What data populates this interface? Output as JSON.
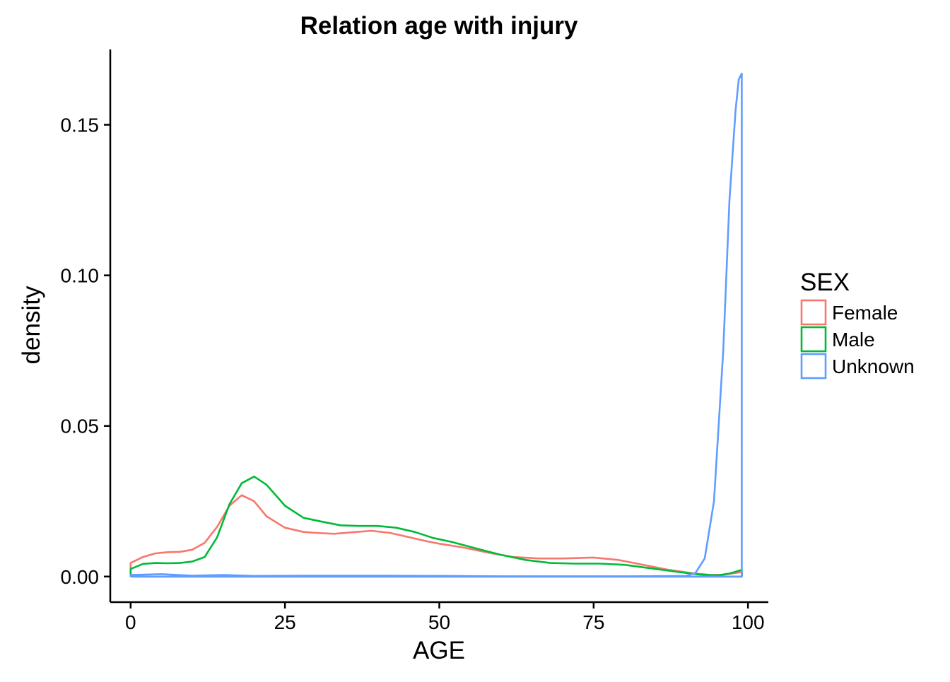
{
  "chart_data": {
    "type": "line",
    "title": "Relation age with injury",
    "xlabel": "AGE",
    "ylabel": "density",
    "xlim": [
      -3.3,
      103.3
    ],
    "ylim": [
      -0.0085,
      0.175
    ],
    "x_ticks": [
      0,
      25,
      50,
      75,
      100
    ],
    "x_tick_labels": [
      "0",
      "25",
      "50",
      "75",
      "100"
    ],
    "y_ticks": [
      0.0,
      0.05,
      0.1,
      0.15
    ],
    "y_tick_labels": [
      "0.00",
      "0.05",
      "0.10",
      "0.15"
    ],
    "grid": false,
    "legend": {
      "title": "SEX",
      "position": "right",
      "entries": [
        "Female",
        "Male",
        "Unknown"
      ]
    },
    "series": [
      {
        "name": "Female",
        "color": "#F8766D",
        "points": [
          [
            0,
            0.0045
          ],
          [
            2,
            0.0065
          ],
          [
            4,
            0.0077
          ],
          [
            6,
            0.0081
          ],
          [
            8,
            0.0082
          ],
          [
            10,
            0.0089
          ],
          [
            12,
            0.0112
          ],
          [
            14,
            0.0165
          ],
          [
            16,
            0.0235
          ],
          [
            18,
            0.027
          ],
          [
            20,
            0.025
          ],
          [
            22,
            0.02
          ],
          [
            25,
            0.0162
          ],
          [
            28,
            0.0148
          ],
          [
            30,
            0.0145
          ],
          [
            33,
            0.0142
          ],
          [
            36,
            0.0147
          ],
          [
            39,
            0.0152
          ],
          [
            42,
            0.0145
          ],
          [
            45,
            0.0131
          ],
          [
            48,
            0.0117
          ],
          [
            50,
            0.0109
          ],
          [
            54,
            0.0096
          ],
          [
            58,
            0.0079
          ],
          [
            62,
            0.0065
          ],
          [
            66,
            0.006
          ],
          [
            70,
            0.006
          ],
          [
            75,
            0.0063
          ],
          [
            79,
            0.0055
          ],
          [
            83,
            0.0039
          ],
          [
            87,
            0.0023
          ],
          [
            91,
            0.0011
          ],
          [
            94,
            0.0005
          ],
          [
            96,
            0.0006
          ],
          [
            98,
            0.0012
          ],
          [
            99,
            0.0015
          ],
          [
            99,
            0
          ]
        ],
        "baseline": [
          0,
          99
        ]
      },
      {
        "name": "Male",
        "color": "#00BA38",
        "points": [
          [
            0,
            0.0025
          ],
          [
            2,
            0.0042
          ],
          [
            4,
            0.0045
          ],
          [
            6,
            0.0044
          ],
          [
            8,
            0.0045
          ],
          [
            10,
            0.005
          ],
          [
            12,
            0.0065
          ],
          [
            14,
            0.013
          ],
          [
            16,
            0.024
          ],
          [
            18,
            0.031
          ],
          [
            20,
            0.0332
          ],
          [
            22,
            0.0305
          ],
          [
            25,
            0.0235
          ],
          [
            28,
            0.0195
          ],
          [
            31,
            0.0182
          ],
          [
            34,
            0.017
          ],
          [
            37,
            0.0168
          ],
          [
            40,
            0.0168
          ],
          [
            43,
            0.0162
          ],
          [
            46,
            0.0148
          ],
          [
            49,
            0.0128
          ],
          [
            52,
            0.0115
          ],
          [
            56,
            0.0093
          ],
          [
            60,
            0.0072
          ],
          [
            64,
            0.0055
          ],
          [
            68,
            0.0045
          ],
          [
            72,
            0.0043
          ],
          [
            76,
            0.0043
          ],
          [
            80,
            0.0039
          ],
          [
            84,
            0.0028
          ],
          [
            88,
            0.0017
          ],
          [
            92,
            0.0007
          ],
          [
            95,
            0.0004
          ],
          [
            97,
            0.001
          ],
          [
            99,
            0.0022
          ],
          [
            99,
            0
          ]
        ],
        "baseline": [
          0,
          99
        ]
      },
      {
        "name": "Unknown",
        "color": "#619CFF",
        "points": [
          [
            0,
            0.0005
          ],
          [
            5,
            0.0008
          ],
          [
            10,
            0.0003
          ],
          [
            15,
            0.0005
          ],
          [
            20,
            0.0002
          ],
          [
            30,
            0.0003
          ],
          [
            40,
            0.0003
          ],
          [
            50,
            0.0002
          ],
          [
            60,
            0.0001
          ],
          [
            70,
            0.0001
          ],
          [
            80,
            0.0001
          ],
          [
            90,
            0.0002
          ],
          [
            91.5,
            0.0012
          ],
          [
            93,
            0.006
          ],
          [
            94.5,
            0.025
          ],
          [
            96,
            0.075
          ],
          [
            97,
            0.125
          ],
          [
            98,
            0.155
          ],
          [
            98.5,
            0.165
          ],
          [
            99,
            0.167
          ],
          [
            99,
            0
          ]
        ],
        "baseline": [
          0,
          99
        ]
      }
    ]
  }
}
